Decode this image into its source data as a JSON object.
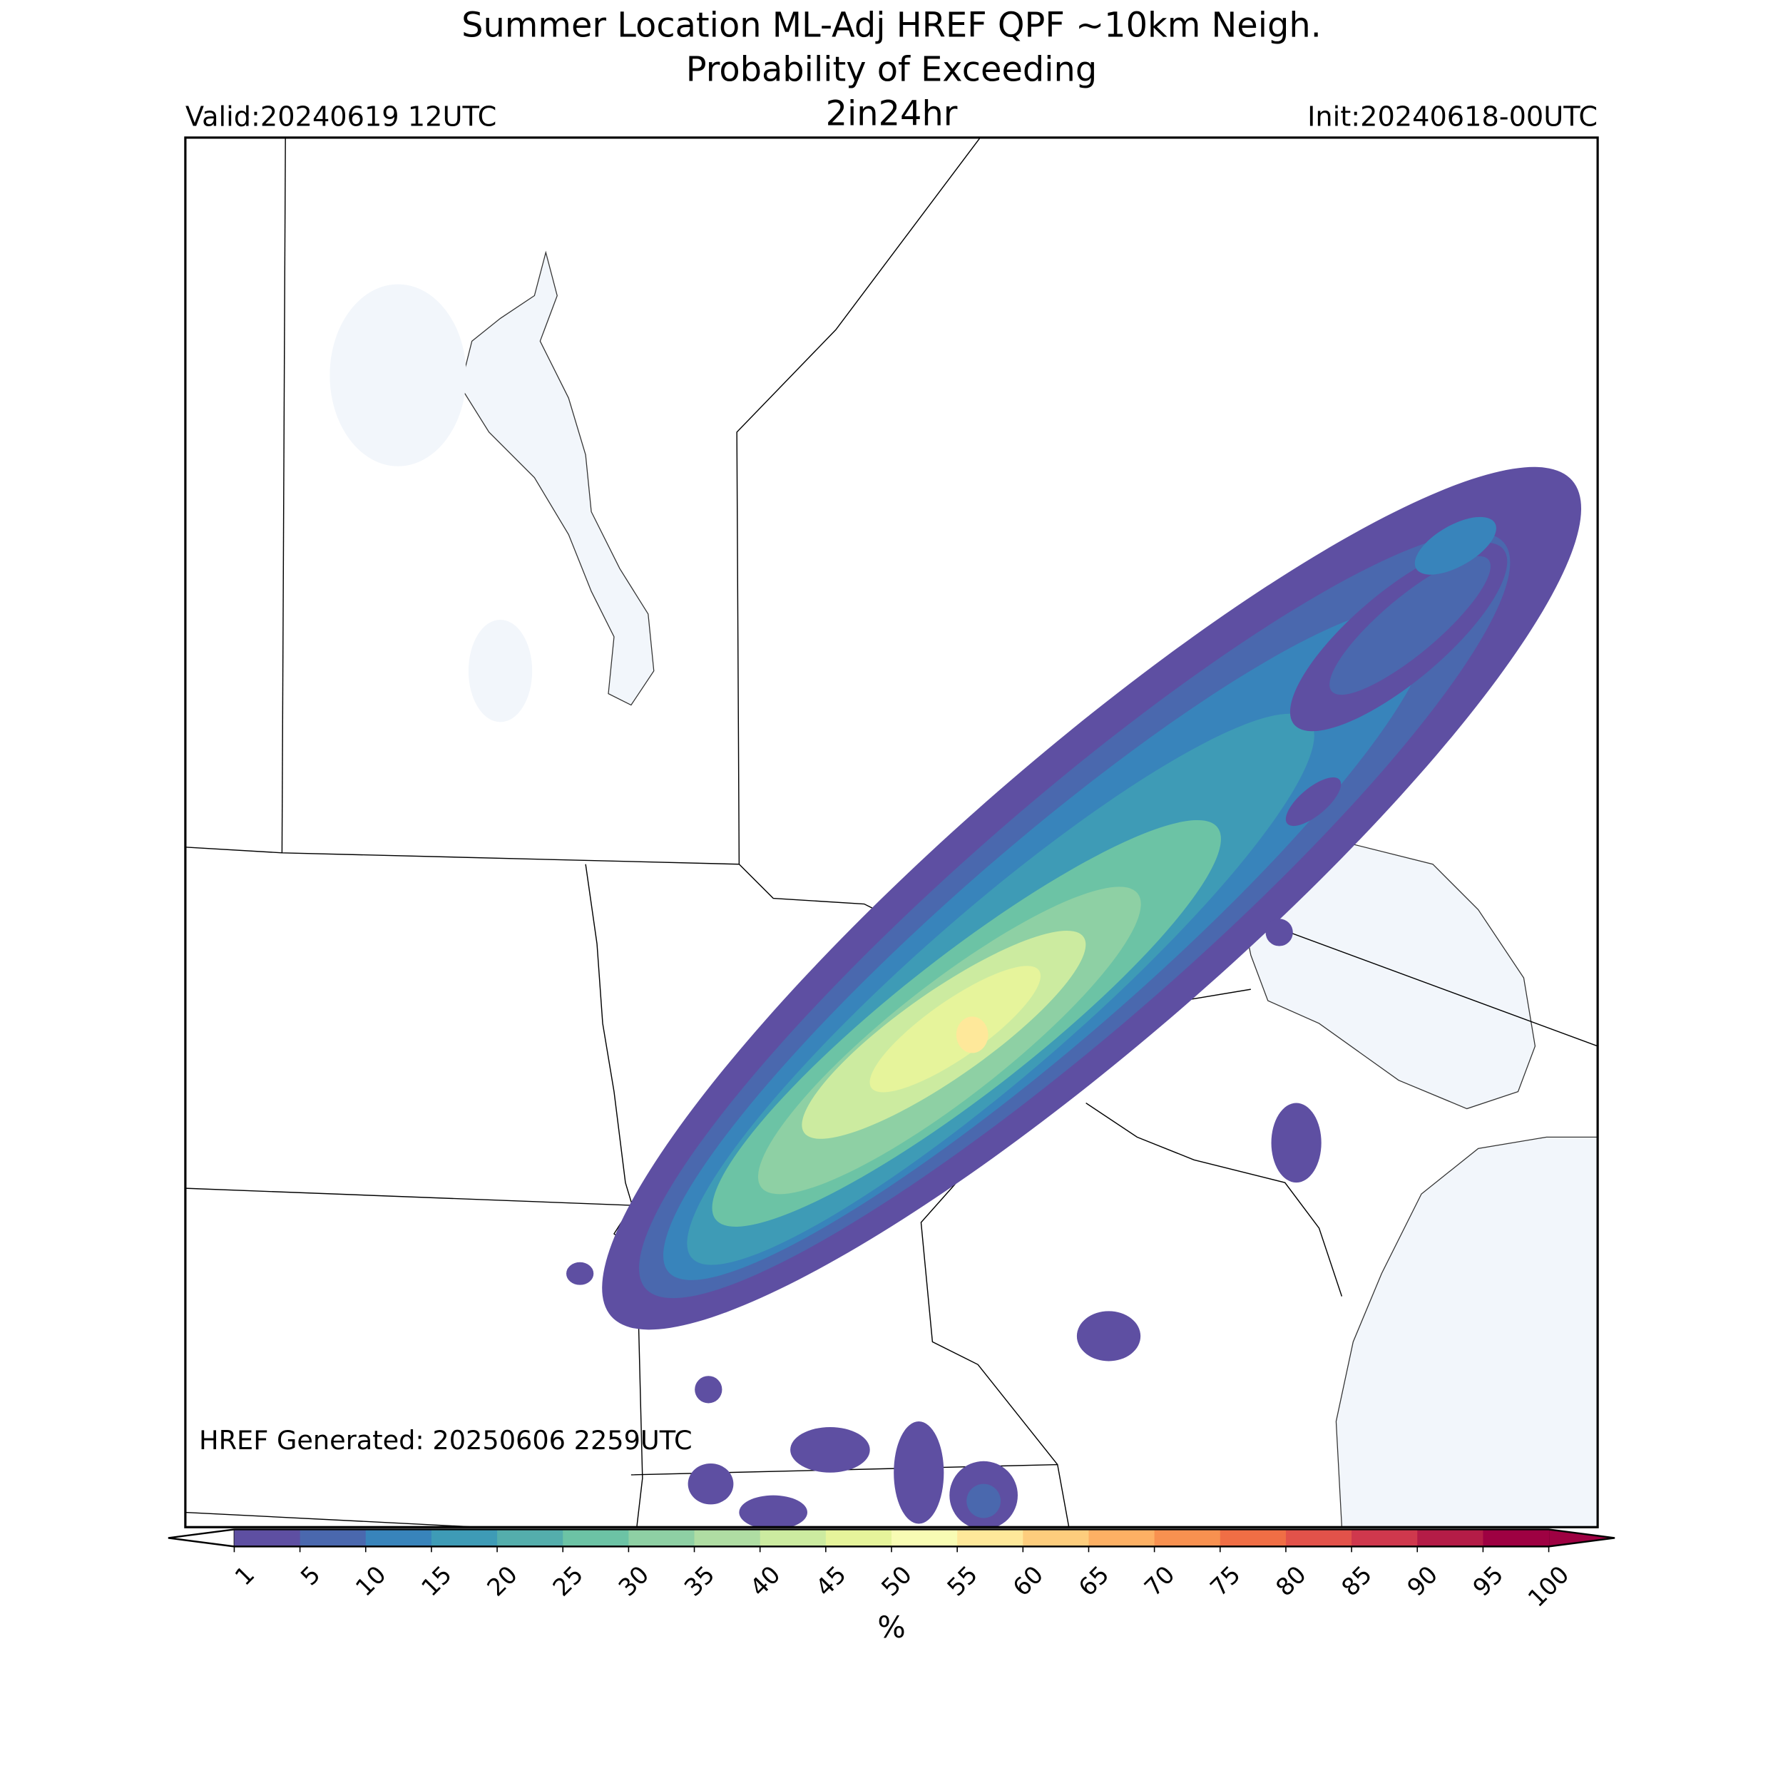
{
  "title": [
    "Summer Location ML-Adj HREF QPF ~10km Neigh.",
    "Probability of Exceeding"
  ],
  "valid": "Valid:20240619 12UTC",
  "threshold": "2in24hr",
  "init": "Init:20240618-00UTC",
  "generated": "HREF Generated: 20250606 2259UTC",
  "colorbar": {
    "label": "%",
    "ticks": [
      1,
      5,
      10,
      15,
      20,
      25,
      30,
      35,
      40,
      45,
      50,
      55,
      60,
      65,
      70,
      75,
      80,
      85,
      90,
      95,
      100
    ],
    "colors": [
      "#5e4fa2",
      "#4a68ae",
      "#3884bb",
      "#3e9bb6",
      "#54aeac",
      "#6cc3a5",
      "#8ed0a4",
      "#afdda3",
      "#cceba0",
      "#e6f49b",
      "#f8fcb4",
      "#fee89a",
      "#fdcd7d",
      "#fdb064",
      "#f89150",
      "#f06e45",
      "#e2524a",
      "#cf384d",
      "#b41c47",
      "#9e0142"
    ],
    "under_color": "#ffffff",
    "over_color": "#9e0142"
  }
}
